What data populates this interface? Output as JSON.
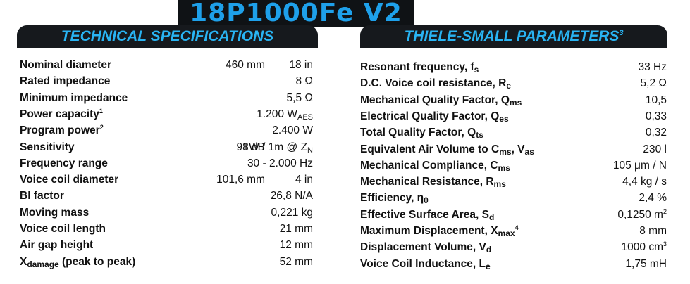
{
  "model_title": "18P1000Fe V2",
  "headers": {
    "technical_specifications": "TECHNICAL SPECIFICATIONS",
    "thiele_small": "THIELE-SMALL PARAMETERS",
    "thiele_small_note": "3"
  },
  "technical_specifications": [
    {
      "label": "Nominal diameter",
      "value": "460 mm",
      "value2": "18 in"
    },
    {
      "label": "Rated impedance",
      "value": "8 Ω"
    },
    {
      "label": "Minimum impedance",
      "value": "5,5 Ω"
    },
    {
      "label": "Power capacity",
      "note": "1",
      "value": "1.200 W",
      "value_sub": "AES"
    },
    {
      "label": "Program power",
      "note": "2",
      "value": "2.400 W"
    },
    {
      "label": "Sensitivity",
      "value": "98 dB",
      "value2": "1W / 1m @ Z",
      "value2_sub": "N"
    },
    {
      "label": "Frequency range",
      "value": "30 - 2.000 Hz"
    },
    {
      "label": "Voice coil diameter",
      "value": "101,6 mm",
      "value2": "4 in"
    },
    {
      "label": "Bl factor",
      "value": "26,8 N/A"
    },
    {
      "label": "Moving mass",
      "value": "0,221 kg"
    },
    {
      "label": "Voice coil length",
      "value": "21 mm"
    },
    {
      "label": "Air gap height",
      "value": "12 mm"
    },
    {
      "label": "X",
      "label_sub": "damage",
      "label_rest": " (peak to peak)",
      "value": "52 mm"
    }
  ],
  "thiele_small_parameters": [
    {
      "label": "Resonant frequency, f",
      "label_sub": "s",
      "value": "33 Hz"
    },
    {
      "label": "D.C. Voice coil resistance, R",
      "label_sub": "e",
      "value": "5,2 Ω"
    },
    {
      "label": "Mechanical Quality Factor, Q",
      "label_sub": "ms",
      "value": "10,5"
    },
    {
      "label": "Electrical Quality Factor, Q",
      "label_sub": "es",
      "value": "0,33"
    },
    {
      "label": "Total Quality Factor, Q",
      "label_sub": "ts",
      "value": "0,32"
    },
    {
      "label": "Equivalent Air Volume to C",
      "label_sub": "ms",
      "label_rest": ", V",
      "label_sub2": "as",
      "value": "230 l"
    },
    {
      "label": "Mechanical Compliance, C",
      "label_sub": "ms",
      "value": "105 μm / N"
    },
    {
      "label": "Mechanical Resistance, R",
      "label_sub": "ms",
      "value": "4,4 kg / s"
    },
    {
      "label": "Efficiency, η",
      "label_sub": "0",
      "value": "2,4 %"
    },
    {
      "label": "Effective Surface Area, S",
      "label_sub": "d",
      "value": "0,1250 m",
      "value_sup": "2"
    },
    {
      "label": "Maximum Displacement, X",
      "label_sub": "max",
      "note": "4",
      "value": "8 mm"
    },
    {
      "label": "Displacement Volume, V",
      "label_sub": "d",
      "value": "1000 cm",
      "value_sup": "3"
    },
    {
      "label": "Voice Coil Inductance, L",
      "label_sub": "e",
      "value": "1,75 mH"
    }
  ]
}
